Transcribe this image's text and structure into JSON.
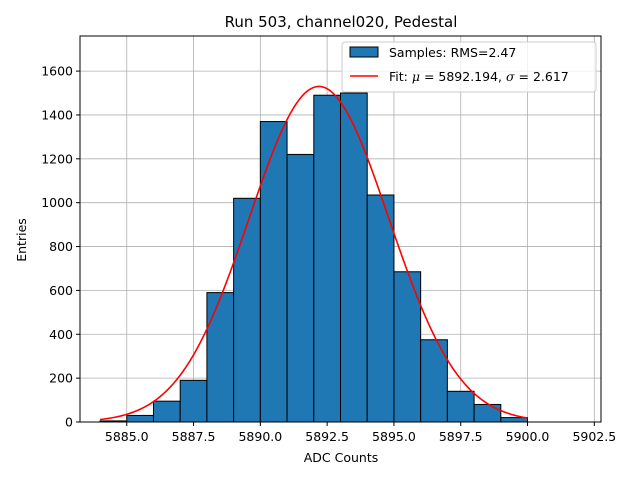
{
  "chart_data": {
    "type": "bar",
    "title": "Run 503, channel020, Pedestal",
    "xlabel": "ADC Counts",
    "ylabel": "Entries",
    "xlim": [
      5883.25,
      5902.75
    ],
    "ylim": [
      0,
      1760
    ],
    "xticks": [
      5885.0,
      5887.5,
      5890.0,
      5892.5,
      5895.0,
      5897.5,
      5900.0,
      5902.5
    ],
    "xtick_labels": [
      "5885.0",
      "5887.5",
      "5890.0",
      "5892.5",
      "5895.0",
      "5897.5",
      "5900.0",
      "5902.5"
    ],
    "yticks": [
      0,
      200,
      400,
      600,
      800,
      1000,
      1200,
      1400,
      1600
    ],
    "ytick_labels": [
      "0",
      "200",
      "400",
      "600",
      "800",
      "1000",
      "1200",
      "1400",
      "1600"
    ],
    "grid": true,
    "legend_position": "upper-right",
    "histogram": {
      "name": "Samples: RMS=2.47",
      "color": "#1f77b4",
      "edgecolor": "#000000",
      "bin_edges": [
        5884,
        5885,
        5886,
        5887,
        5888,
        5889,
        5890,
        5891,
        5892,
        5893,
        5894,
        5895,
        5896,
        5897,
        5898,
        5899,
        5900
      ],
      "values": [
        5,
        30,
        95,
        190,
        590,
        1020,
        1370,
        1220,
        1490,
        1500,
        1035,
        685,
        375,
        140,
        80,
        20
      ]
    },
    "fit": {
      "name": "Fit: μ = 5892.194, σ = 2.617",
      "label_prefix": "Fit: ",
      "mu_symbol": "μ",
      "mu_text": " = 5892.194, ",
      "sigma_symbol": "σ",
      "sigma_text": " = 2.617",
      "color": "#ff0000",
      "mu": 5892.194,
      "sigma": 2.617,
      "amplitude": 1530,
      "x_range": [
        5884,
        5900
      ]
    }
  }
}
